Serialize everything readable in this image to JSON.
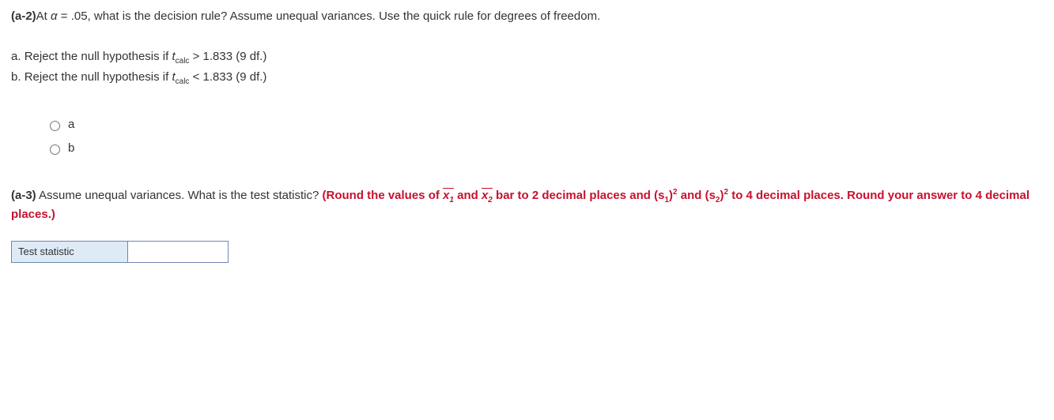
{
  "q_a2": {
    "label": "(a-2)",
    "prompt_before_alpha": "At ",
    "alpha_sym": "α",
    "eq": " = ",
    "alpha_val": ".05",
    "prompt_after": ", what is the decision rule? Assume unequal variances. Use the quick rule for degrees of freedom."
  },
  "options": {
    "a_label": "a. ",
    "a_text_before": "Reject the null hypothesis if ",
    "t_sym": "t",
    "t_sub": "calc",
    "a_cmp": " > ",
    "a_val": "1.833 (9 df.)",
    "b_label": "b. ",
    "b_text_before": "Reject the null hypothesis if ",
    "b_cmp": " < ",
    "b_val": "1.833 (9 df.)"
  },
  "radios": {
    "a": "a",
    "b": "b"
  },
  "q_a3": {
    "label": "(a-3)",
    "prompt": " Assume unequal variances. What is the test statistic? ",
    "red1": "(Round the values of ",
    "x1": "x",
    "x1_sub": "1",
    "and1": " and ",
    "x2": "x",
    "x2_sub": "2",
    "red2": " bar to 2 decimal places and (s",
    "s1_sub": "1",
    "red3": ")",
    "sq": "2",
    "red4": " and (s",
    "s2_sub": "2",
    "red5": ")",
    "red6": " to 4 decimal places. Round your answer to 4 decimal places.)"
  },
  "table": {
    "row_label": "Test statistic",
    "value": ""
  }
}
